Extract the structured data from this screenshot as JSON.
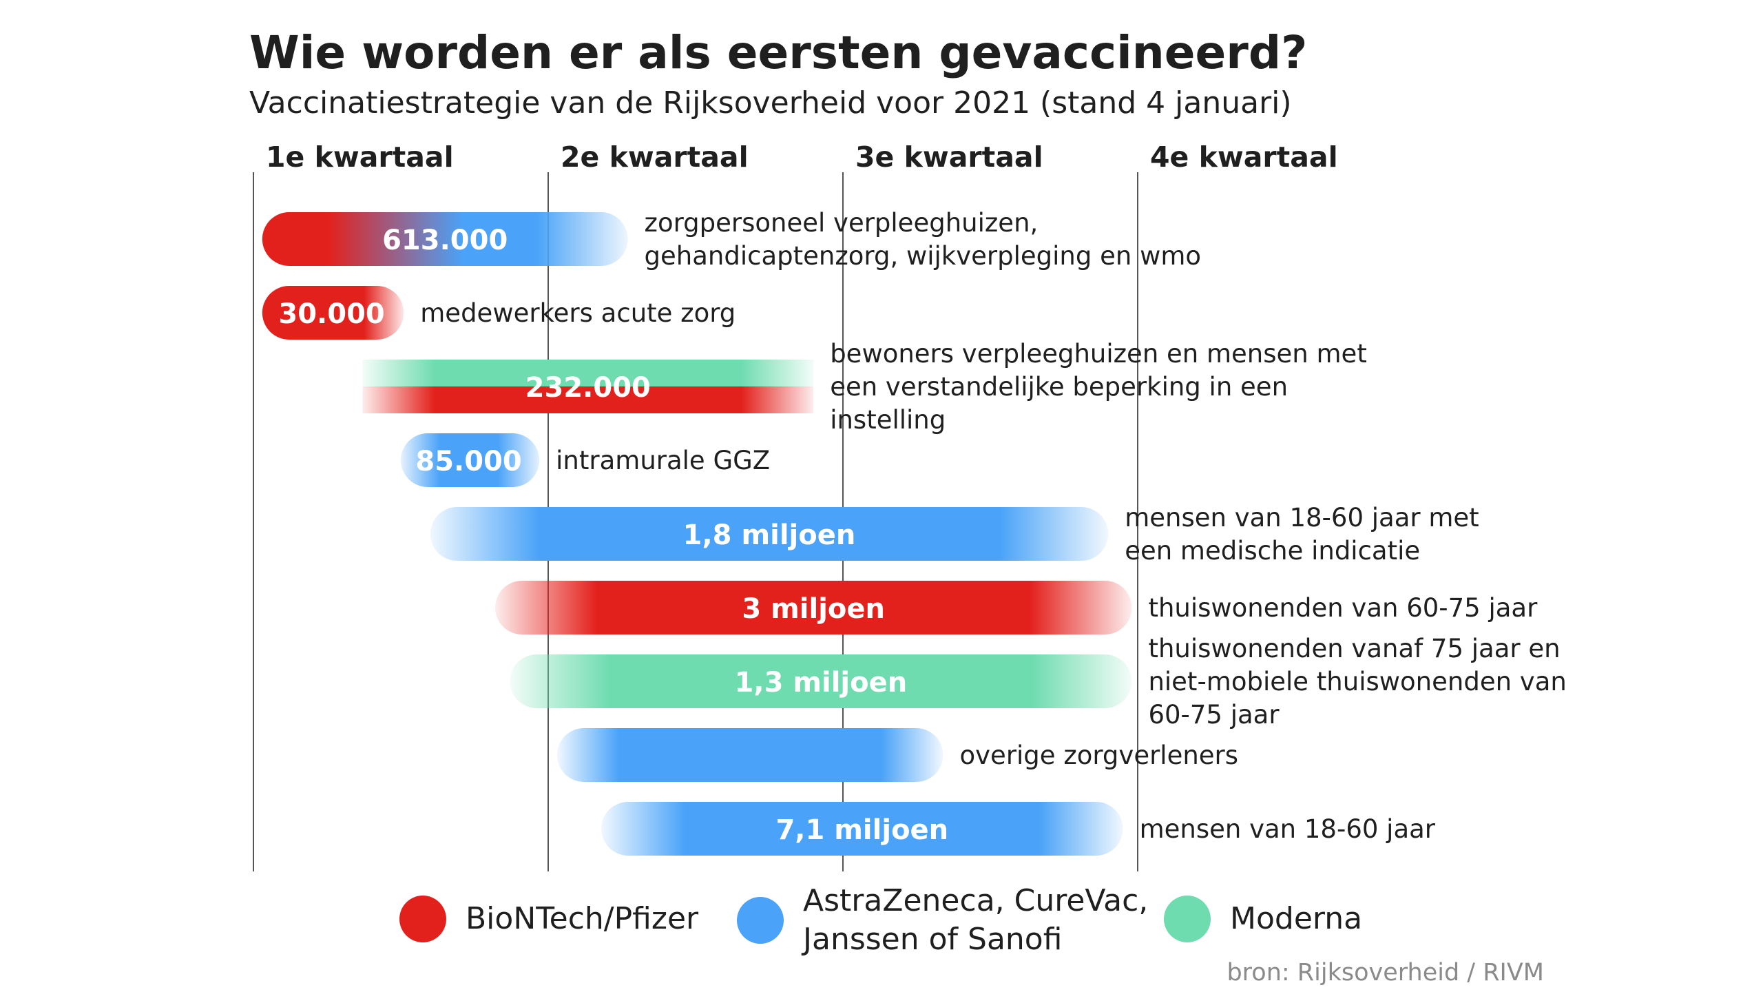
{
  "title": "Wie worden er als eersten gevaccineerd?",
  "subtitle": "Vaccinatiestrategie van de Rijksoverheid voor 2021 (stand 4 januari)",
  "source": "bron: Rijksoverheid / RIVM",
  "colors": {
    "biontech": "#e3211c",
    "astrazeneca": "#4aa3f8",
    "moderna": "#6fdcaf"
  },
  "chart_data": {
    "type": "bar",
    "xaxis": {
      "ticks": [
        "1e kwartaal",
        "2e kwartaal",
        "3e kwartaal",
        "4e kwartaal"
      ],
      "range": [
        0,
        4
      ]
    },
    "series": [
      {
        "name": "BioNTech/Pfizer",
        "color": "#e3211c"
      },
      {
        "name": "AstraZeneca, CureVac, Janssen of Sanofi",
        "color": "#4aa3f8"
      },
      {
        "name": "Moderna",
        "color": "#6fdcaf"
      }
    ],
    "bars": [
      {
        "label": "613.000",
        "group": "zorgpersoneel verpleeghuizen, gehandicaptenzorg, wijkverpleging en wmo",
        "start": 0.03,
        "end": 1.27,
        "vaccines": [
          "BioNTech/Pfizer",
          "AstraZeneca, CureVac, Janssen of Sanofi"
        ]
      },
      {
        "label": "30.000",
        "group": "medewerkers acute zorg",
        "start": 0.03,
        "end": 0.51,
        "vaccines": [
          "BioNTech/Pfizer"
        ]
      },
      {
        "label": "232.000",
        "group": "bewoners verpleeghuizen en mensen met een verstandelijke beperking in een instelling",
        "start": 0.37,
        "end": 1.9,
        "vaccines": [
          "Moderna",
          "BioNTech/Pfizer"
        ]
      },
      {
        "label": "85.000",
        "group": "intramurale GGZ",
        "start": 0.5,
        "end": 0.97,
        "vaccines": [
          "AstraZeneca, CureVac, Janssen of Sanofi"
        ]
      },
      {
        "label": "1,8 miljoen",
        "group": "mensen van 18-60 jaar met een medische indicatie",
        "start": 0.6,
        "end": 2.9,
        "vaccines": [
          "AstraZeneca, CureVac, Janssen of Sanofi"
        ]
      },
      {
        "label": "3 miljoen",
        "group": "thuiswonenden van 60-75 jaar",
        "start": 0.82,
        "end": 2.98,
        "vaccines": [
          "BioNTech/Pfizer"
        ]
      },
      {
        "label": "1,3 miljoen",
        "group": "thuiswonenden vanaf 75 jaar en niet-mobiele thuiswonenden van 60-75 jaar",
        "start": 0.87,
        "end": 2.98,
        "vaccines": [
          "Moderna"
        ]
      },
      {
        "label": "",
        "group": "overige zorgverleners",
        "start": 1.03,
        "end": 2.34,
        "vaccines": [
          "AstraZeneca, CureVac, Janssen of Sanofi"
        ]
      },
      {
        "label": "7,1 miljoen",
        "group": "mensen van 18-60 jaar",
        "start": 1.18,
        "end": 2.95,
        "vaccines": [
          "AstraZeneca, CureVac, Janssen of Sanofi"
        ]
      }
    ]
  },
  "legend": [
    {
      "label": "BioNTech/Pfizer",
      "color": "#e3211c"
    },
    {
      "label": "AstraZeneca, CureVac, Janssen of Sanofi",
      "color": "#4aa3f8"
    },
    {
      "label": "Moderna",
      "color": "#6fdcaf"
    }
  ]
}
